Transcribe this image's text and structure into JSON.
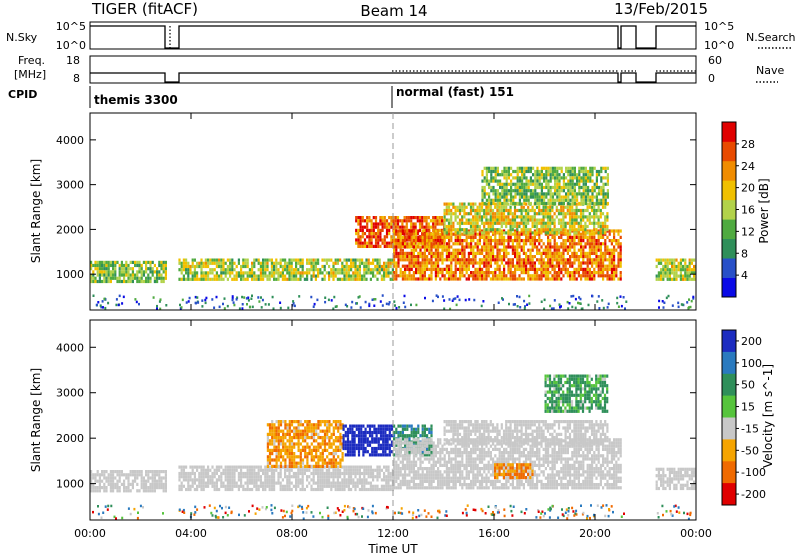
{
  "header": {
    "radar": "TIGER (fitACF)",
    "beam": "Beam 14",
    "date": "13/Feb/2015"
  },
  "status_panels": {
    "nsky": {
      "label": "N.Sky",
      "tick_top": "10^5",
      "tick_bottom": "10^0"
    },
    "nsearch": {
      "label": "N.Search",
      "tick_top": "10^5",
      "tick_bottom": "10^0"
    },
    "freq": {
      "label_line1": "Freq.",
      "label_line2": "[MHz]",
      "tick_top": "18",
      "tick_bottom": "8"
    },
    "nave": {
      "label": "Nave",
      "tick_top": "60",
      "tick_bottom": "0"
    },
    "cpid": {
      "label": "CPID",
      "modes": [
        {
          "name": "themis 3300",
          "start_hour": 0
        },
        {
          "name": "normal (fast) 151",
          "start_hour": 12
        }
      ]
    }
  },
  "chart_data": [
    {
      "type": "heatmap",
      "title": "",
      "xlabel": "Time UT",
      "ylabel": "Slant Range [km]",
      "xlim": [
        0,
        24
      ],
      "ylim": [
        200,
        4600
      ],
      "y_ticks": [
        1000,
        2000,
        3000,
        4000
      ],
      "y_tick_labels": [
        "1000",
        "2000",
        "3000",
        "4000"
      ],
      "colorbar": {
        "label": "Power [dB]",
        "range": [
          0,
          32
        ],
        "tick_values": [
          4,
          8,
          12,
          16,
          20,
          24,
          28
        ],
        "tick_labels": [
          "4",
          "8",
          "12",
          "16",
          "20",
          "24",
          "28"
        ],
        "colors": [
          "#0a0ae6",
          "#2850c8",
          "#2f8f5a",
          "#4faa40",
          "#b2d24a",
          "#f0c000",
          "#f08c00",
          "#e84a00",
          "#e00000"
        ]
      },
      "data_gaps_ut": [
        [
          3.0,
          3.5
        ],
        [
          21.2,
          22.4
        ]
      ],
      "echo_bands": [
        {
          "start_ut": 0.0,
          "end_ut": 3.0,
          "range_low": 850,
          "range_high": 1300,
          "power": 14
        },
        {
          "start_ut": 3.5,
          "end_ut": 12.0,
          "range_low": 850,
          "range_high": 1350,
          "power": 16
        },
        {
          "start_ut": 10.5,
          "end_ut": 14.0,
          "range_low": 1600,
          "range_high": 2300,
          "power": 26
        },
        {
          "start_ut": 12.0,
          "end_ut": 21.0,
          "range_low": 900,
          "range_high": 2000,
          "power": 24
        },
        {
          "start_ut": 14.0,
          "end_ut": 20.5,
          "range_low": 1900,
          "range_high": 2600,
          "power": 18
        },
        {
          "start_ut": 15.5,
          "end_ut": 20.5,
          "range_low": 2600,
          "range_high": 3400,
          "power": 14
        },
        {
          "start_ut": 22.4,
          "end_ut": 24.0,
          "range_low": 900,
          "range_high": 1350,
          "power": 16
        }
      ]
    },
    {
      "type": "heatmap",
      "title": "",
      "xlabel": "Time UT",
      "ylabel": "Slant Range [km]",
      "xlim": [
        0,
        24
      ],
      "ylim": [
        200,
        4600
      ],
      "x_ticks": [
        0,
        4,
        8,
        12,
        16,
        20,
        24
      ],
      "x_tick_labels": [
        "00:00",
        "04:00",
        "08:00",
        "12:00",
        "16:00",
        "20:00",
        "00:00"
      ],
      "y_ticks": [
        1000,
        2000,
        3000,
        4000
      ],
      "y_tick_labels": [
        "1000",
        "2000",
        "3000",
        "4000"
      ],
      "colorbar": {
        "label": "Velocity [m s^-1]",
        "tick_labels": [
          "200",
          "100",
          "50",
          "15",
          "-15",
          "-50",
          "-100",
          "-200"
        ],
        "colors": [
          "#1c2cc0",
          "#2a7abf",
          "#2f8f5a",
          "#56c43c",
          "#c8c8c8",
          "#f5a400",
          "#f06a00",
          "#e00000"
        ]
      },
      "data_gaps_ut": [
        [
          3.0,
          3.5
        ],
        [
          21.2,
          22.4
        ]
      ],
      "echo_bands": [
        {
          "start_ut": 0.0,
          "end_ut": 3.0,
          "range_low": 850,
          "range_high": 1300,
          "velocity": 0
        },
        {
          "start_ut": 3.5,
          "end_ut": 12.0,
          "range_low": 850,
          "range_high": 1400,
          "velocity": -5
        },
        {
          "start_ut": 7.0,
          "end_ut": 10.0,
          "range_low": 1400,
          "range_high": 2400,
          "velocity": -40
        },
        {
          "start_ut": 10.0,
          "end_ut": 12.0,
          "range_low": 1600,
          "range_high": 2300,
          "velocity": 180
        },
        {
          "start_ut": 12.0,
          "end_ut": 13.5,
          "range_low": 1600,
          "range_high": 2300,
          "velocity": 60
        },
        {
          "start_ut": 12.0,
          "end_ut": 21.0,
          "range_low": 900,
          "range_high": 2000,
          "velocity": 0
        },
        {
          "start_ut": 14.0,
          "end_ut": 20.5,
          "range_low": 1900,
          "range_high": 2400,
          "velocity": 0
        },
        {
          "start_ut": 16.0,
          "end_ut": 17.5,
          "range_low": 1150,
          "range_high": 1450,
          "velocity": -60
        },
        {
          "start_ut": 18.0,
          "end_ut": 20.5,
          "range_low": 2600,
          "range_high": 3400,
          "velocity": 40
        },
        {
          "start_ut": 22.4,
          "end_ut": 24.0,
          "range_low": 900,
          "range_high": 1350,
          "velocity": 0
        }
      ]
    }
  ]
}
